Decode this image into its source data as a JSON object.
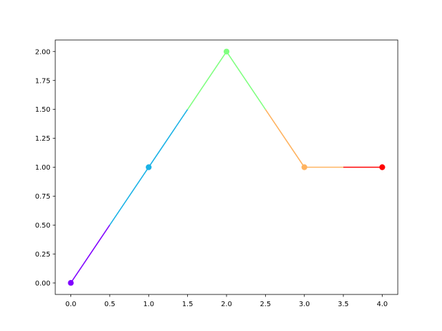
{
  "chart_data": {
    "type": "line",
    "title": "",
    "xlabel": "",
    "ylabel": "",
    "xlim": [
      -0.2,
      4.2
    ],
    "ylim": [
      -0.1,
      2.1
    ],
    "grid": false,
    "x_ticks": [
      "0.0",
      "0.5",
      "1.0",
      "1.5",
      "2.0",
      "2.5",
      "3.0",
      "3.5",
      "4.0"
    ],
    "y_ticks": [
      "0.00",
      "0.25",
      "0.50",
      "0.75",
      "1.00",
      "1.25",
      "1.50",
      "1.75",
      "2.00"
    ],
    "points": [
      {
        "x": 0,
        "y": 0,
        "color": "#8000ff"
      },
      {
        "x": 1,
        "y": 1,
        "color": "#1ab2e6"
      },
      {
        "x": 2,
        "y": 2,
        "color": "#80ff80"
      },
      {
        "x": 3,
        "y": 1,
        "color": "#ffb360"
      },
      {
        "x": 4,
        "y": 1,
        "color": "#ff0000"
      }
    ],
    "segments": [
      {
        "x": [
          0.0,
          0.5
        ],
        "y": [
          0.0,
          0.5
        ],
        "color": "#8000ff"
      },
      {
        "x": [
          0.5,
          1.0
        ],
        "y": [
          0.5,
          1.0
        ],
        "color": "#1ab2e6"
      },
      {
        "x": [
          1.0,
          1.5
        ],
        "y": [
          1.0,
          1.5
        ],
        "color": "#1ab2e6"
      },
      {
        "x": [
          1.5,
          2.0
        ],
        "y": [
          1.5,
          2.0
        ],
        "color": "#80ff80"
      },
      {
        "x": [
          2.0,
          2.5
        ],
        "y": [
          2.0,
          1.5
        ],
        "color": "#80ff80"
      },
      {
        "x": [
          2.5,
          3.0
        ],
        "y": [
          1.5,
          1.0
        ],
        "color": "#ffb360"
      },
      {
        "x": [
          3.0,
          3.5
        ],
        "y": [
          1.0,
          1.0
        ],
        "color": "#ffb360"
      },
      {
        "x": [
          3.5,
          4.0
        ],
        "y": [
          1.0,
          1.0
        ],
        "color": "#ff0000"
      }
    ]
  }
}
